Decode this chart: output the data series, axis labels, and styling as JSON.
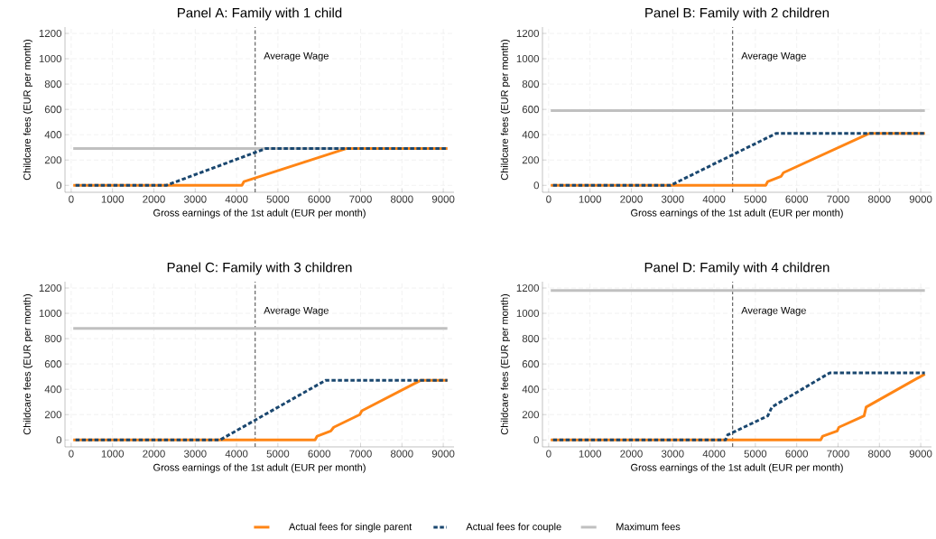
{
  "chart_data": [
    {
      "type": "line",
      "title": "Panel A: Family with 1 child",
      "xlabel": "Gross earnings of the 1st adult (EUR per month)",
      "ylabel": "Childcare fees (EUR per month)",
      "xlim": [
        -150,
        9260
      ],
      "ylim": [
        -55,
        1250
      ],
      "xticks": [
        0,
        1000,
        2000,
        3000,
        4000,
        5000,
        6000,
        7000,
        8000,
        9000
      ],
      "yticks": [
        0,
        200,
        400,
        600,
        800,
        1000,
        1200
      ],
      "grid": true,
      "legend": false,
      "ref_lines": [
        {
          "axis": "x",
          "value": 4450,
          "label": "Average Wage",
          "color": "#555555",
          "line_style": "dashed"
        }
      ],
      "series": [
        {
          "color": "#ff8515",
          "line_style": "solid",
          "x": [
            50,
            4130,
            4180,
            6650,
            9100
          ],
          "values": [
            0,
            0,
            30,
            290,
            290
          ]
        },
        {
          "color": "#1a476f",
          "line_style": "dashed",
          "x": [
            50,
            2300,
            4700,
            9100
          ],
          "values": [
            0,
            0,
            290,
            290
          ]
        },
        {
          "color": "#c0c0c0",
          "line_style": "solid",
          "x": [
            50,
            9100
          ],
          "values": [
            290,
            290
          ]
        }
      ]
    },
    {
      "type": "line",
      "title": "Panel B: Family with 2 children",
      "xlabel": "Gross earnings of the 1st adult (EUR per month)",
      "ylabel": "Childcare fees (EUR per month)",
      "xlim": [
        -150,
        9260
      ],
      "ylim": [
        -55,
        1250
      ],
      "xticks": [
        0,
        1000,
        2000,
        3000,
        4000,
        5000,
        6000,
        7000,
        8000,
        9000
      ],
      "yticks": [
        0,
        200,
        400,
        600,
        800,
        1000,
        1200
      ],
      "grid": true,
      "legend": false,
      "ref_lines": [
        {
          "axis": "x",
          "value": 4450,
          "label": "Average Wage",
          "color": "#555555",
          "line_style": "dashed"
        }
      ],
      "series": [
        {
          "color": "#ff8515",
          "line_style": "solid",
          "x": [
            50,
            5250,
            5300,
            5620,
            5680,
            7750,
            9100
          ],
          "values": [
            0,
            0,
            30,
            70,
            100,
            410,
            410
          ]
        },
        {
          "color": "#1a476f",
          "line_style": "dashed",
          "x": [
            50,
            2950,
            5500,
            9100
          ],
          "values": [
            0,
            0,
            410,
            410
          ]
        },
        {
          "color": "#c0c0c0",
          "line_style": "solid",
          "x": [
            50,
            9100
          ],
          "values": [
            590,
            590
          ]
        }
      ]
    },
    {
      "type": "line",
      "title": "Panel C: Family with 3 children",
      "xlabel": "Gross earnings of the 1st adult (EUR per month)",
      "ylabel": "Childcare fees (EUR per month)",
      "xlim": [
        -150,
        9260
      ],
      "ylim": [
        -55,
        1250
      ],
      "xticks": [
        0,
        1000,
        2000,
        3000,
        4000,
        5000,
        6000,
        7000,
        8000,
        9000
      ],
      "yticks": [
        0,
        200,
        400,
        600,
        800,
        1000,
        1200
      ],
      "grid": true,
      "legend": false,
      "ref_lines": [
        {
          "axis": "x",
          "value": 4450,
          "label": "Average Wage",
          "color": "#555555",
          "line_style": "dashed"
        }
      ],
      "series": [
        {
          "color": "#ff8515",
          "line_style": "solid",
          "x": [
            50,
            5900,
            5950,
            6280,
            6350,
            6980,
            7030,
            8450,
            9100
          ],
          "values": [
            0,
            0,
            30,
            70,
            100,
            200,
            230,
            470,
            470
          ]
        },
        {
          "color": "#1a476f",
          "line_style": "dashed",
          "x": [
            50,
            3600,
            6150,
            9100
          ],
          "values": [
            0,
            0,
            470,
            470
          ]
        },
        {
          "color": "#c0c0c0",
          "line_style": "solid",
          "x": [
            50,
            9100
          ],
          "values": [
            880,
            880
          ]
        }
      ]
    },
    {
      "type": "line",
      "title": "Panel D: Family with 4 children",
      "xlabel": "Gross earnings of the 1st adult (EUR per month)",
      "ylabel": "Childcare fees (EUR per month)",
      "xlim": [
        -150,
        9260
      ],
      "ylim": [
        -55,
        1250
      ],
      "xticks": [
        0,
        1000,
        2000,
        3000,
        4000,
        5000,
        6000,
        7000,
        8000,
        9000
      ],
      "yticks": [
        0,
        200,
        400,
        600,
        800,
        1000,
        1200
      ],
      "grid": true,
      "legend": "bottom",
      "ref_lines": [
        {
          "axis": "x",
          "value": 4450,
          "label": "Average Wage",
          "color": "#555555",
          "line_style": "dashed"
        }
      ],
      "series": [
        {
          "name": "Actual fees for single parent",
          "color": "#ff8515",
          "line_style": "solid",
          "x": [
            50,
            6580,
            6630,
            6980,
            7020,
            7630,
            7680,
            9100
          ],
          "values": [
            0,
            0,
            30,
            70,
            100,
            190,
            260,
            520
          ]
        },
        {
          "name": "Actual fees for couple",
          "color": "#1a476f",
          "line_style": "dashed",
          "x": [
            50,
            4280,
            4330,
            5300,
            5400,
            6800,
            9100
          ],
          "values": [
            0,
            0,
            40,
            190,
            260,
            530,
            530
          ]
        },
        {
          "name": "Maximum fees",
          "color": "#c0c0c0",
          "line_style": "solid",
          "x": [
            50,
            9100
          ],
          "values": [
            1180,
            1180
          ]
        }
      ]
    }
  ]
}
